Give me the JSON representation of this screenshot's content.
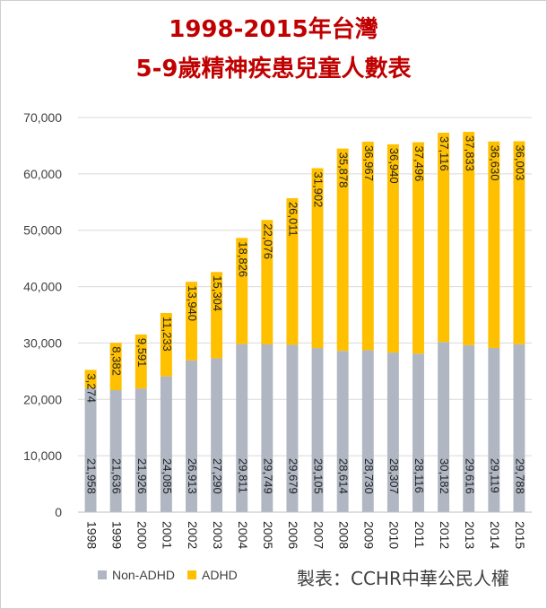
{
  "title_line1": "1998-2015年台灣",
  "title_line2": "5-9歲精神疾患兒童人數表",
  "credit": "製表：CCHR中華公民人權",
  "colors": {
    "non_adhd": "#b0b7c3",
    "adhd": "#ffc000",
    "title": "#c00000",
    "grid": "#d9d9d9"
  },
  "chart_data": {
    "type": "bar",
    "stacked": true,
    "categories": [
      "1998",
      "1999",
      "2000",
      "2001",
      "2002",
      "2003",
      "2004",
      "2005",
      "2006",
      "2007",
      "2008",
      "2009",
      "2010",
      "2011",
      "2012",
      "2013",
      "2014",
      "2015"
    ],
    "series": [
      {
        "name": "Non-ADHD",
        "values": [
          21958,
          21636,
          21926,
          24085,
          26913,
          27290,
          29811,
          29749,
          29679,
          29105,
          28614,
          28730,
          28307,
          28116,
          30182,
          29616,
          29119,
          29788
        ]
      },
      {
        "name": "ADHD",
        "values": [
          3274,
          8382,
          9591,
          11233,
          13940,
          15304,
          18826,
          22076,
          26011,
          31902,
          35878,
          36967,
          36940,
          37496,
          37116,
          37833,
          36630,
          36003
        ]
      }
    ],
    "data_labels": {
      "Non-ADHD": [
        "21,958",
        "21,636",
        "21,926",
        "24,085",
        "26,913",
        "27,290",
        "29,811",
        "29,749",
        "29,679",
        "29,105",
        "28,614",
        "28,730",
        "28,307",
        "28,116",
        "30,182",
        "29,616",
        "29,119",
        "29,788"
      ],
      "ADHD": [
        "3,274",
        "8,382",
        "9,591",
        "11,233",
        "13,940",
        "15,304",
        "18,826",
        "22,076",
        "26,011",
        "31,902",
        "35,878",
        "36,967",
        "36,940",
        "37,496",
        "37,116",
        "37,833",
        "36,630",
        "36,003"
      ]
    },
    "yticks": [
      "0",
      "10,000",
      "20,000",
      "30,000",
      "40,000",
      "50,000",
      "60,000",
      "70,000"
    ],
    "ylim": [
      0,
      70000
    ],
    "grid": true,
    "legend_position": "bottom-left"
  }
}
